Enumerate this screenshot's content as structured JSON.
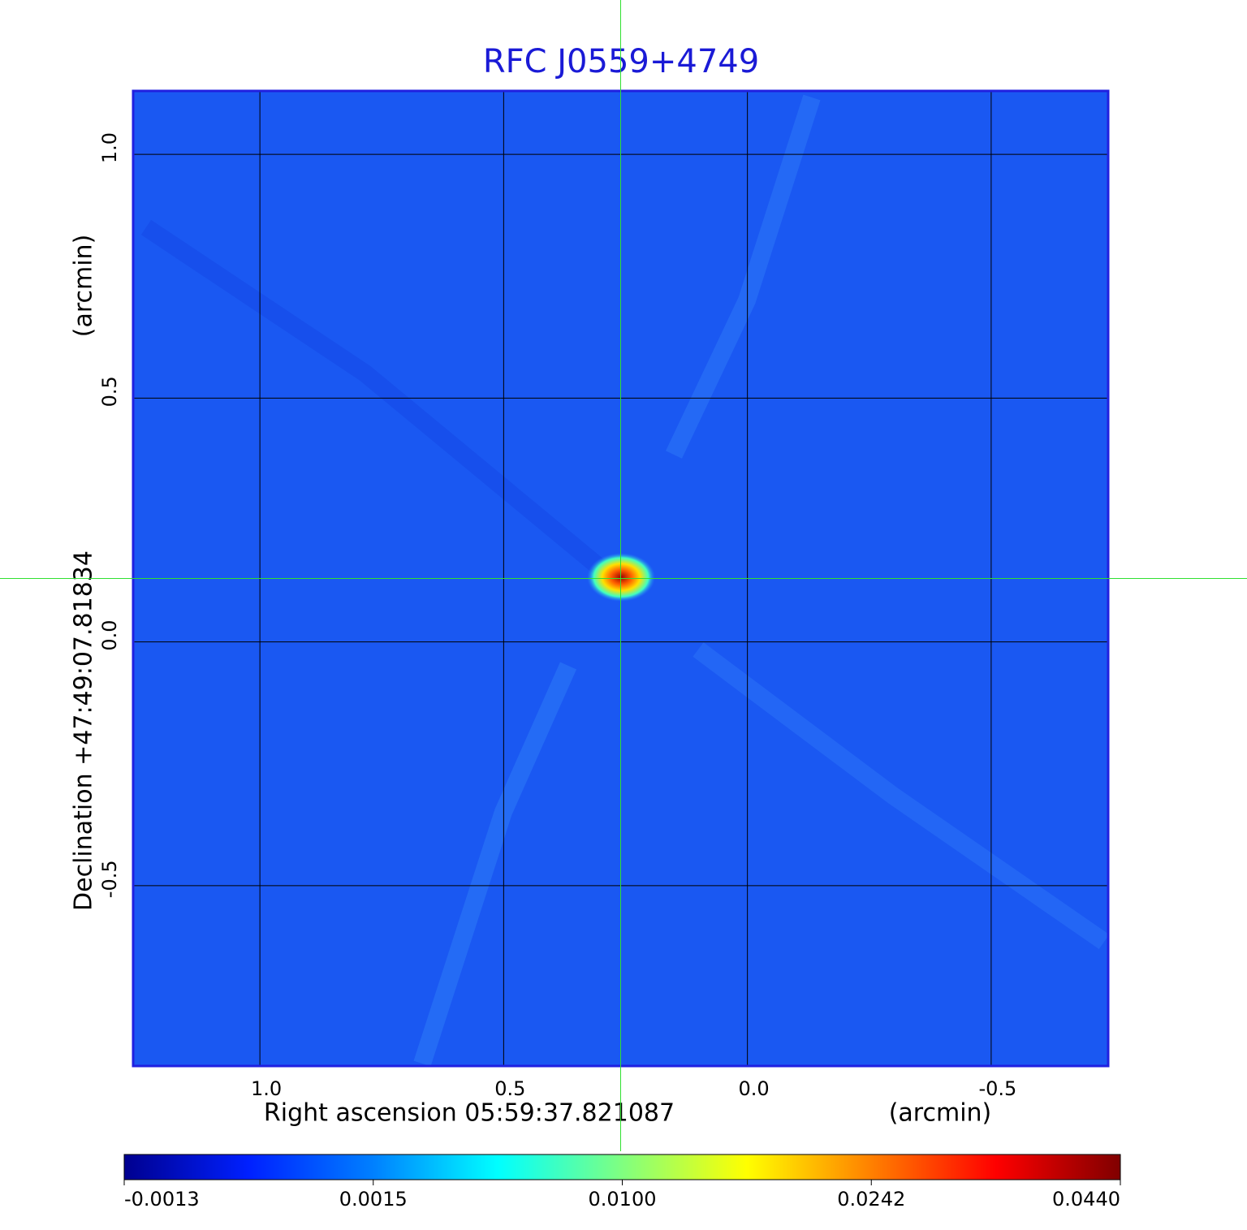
{
  "chart_data": {
    "type": "image",
    "title": "RFC J0559+4749",
    "xlabel": "Right ascension  05:59:37.821087",
    "xunit": "(arcmin)",
    "ylabel": "Declination  +47:49:07.81834",
    "yunit": "(arcmin)",
    "xlim": [
      1.26,
      -0.74
    ],
    "ylim": [
      -0.87,
      1.13
    ],
    "xticks": [
      {
        "value": 1.0,
        "label": "1.0"
      },
      0.5,
      {
        "value": 0.0,
        "label": "0.0"
      },
      -0.5
    ],
    "yticks": [
      {
        "value": 1.0,
        "label": "1.0"
      },
      0.5,
      {
        "value": 0.0,
        "label": "0.0"
      },
      -0.5
    ],
    "grid": true,
    "crosshair": {
      "x": 0.26,
      "y": 0.13
    },
    "colorbar": {
      "ticks": [
        -0.0013,
        0.0015,
        {
          "value": 0.01,
          "label": "0.0100"
        },
        0.0242,
        {
          "value": 0.044,
          "label": "0.0440"
        }
      ],
      "colors": [
        "#00008f",
        "#0020ff",
        "#0080ff",
        "#00ffff",
        "#80ff80",
        "#ffff00",
        "#ff8000",
        "#ff0000",
        "#800000"
      ]
    }
  }
}
